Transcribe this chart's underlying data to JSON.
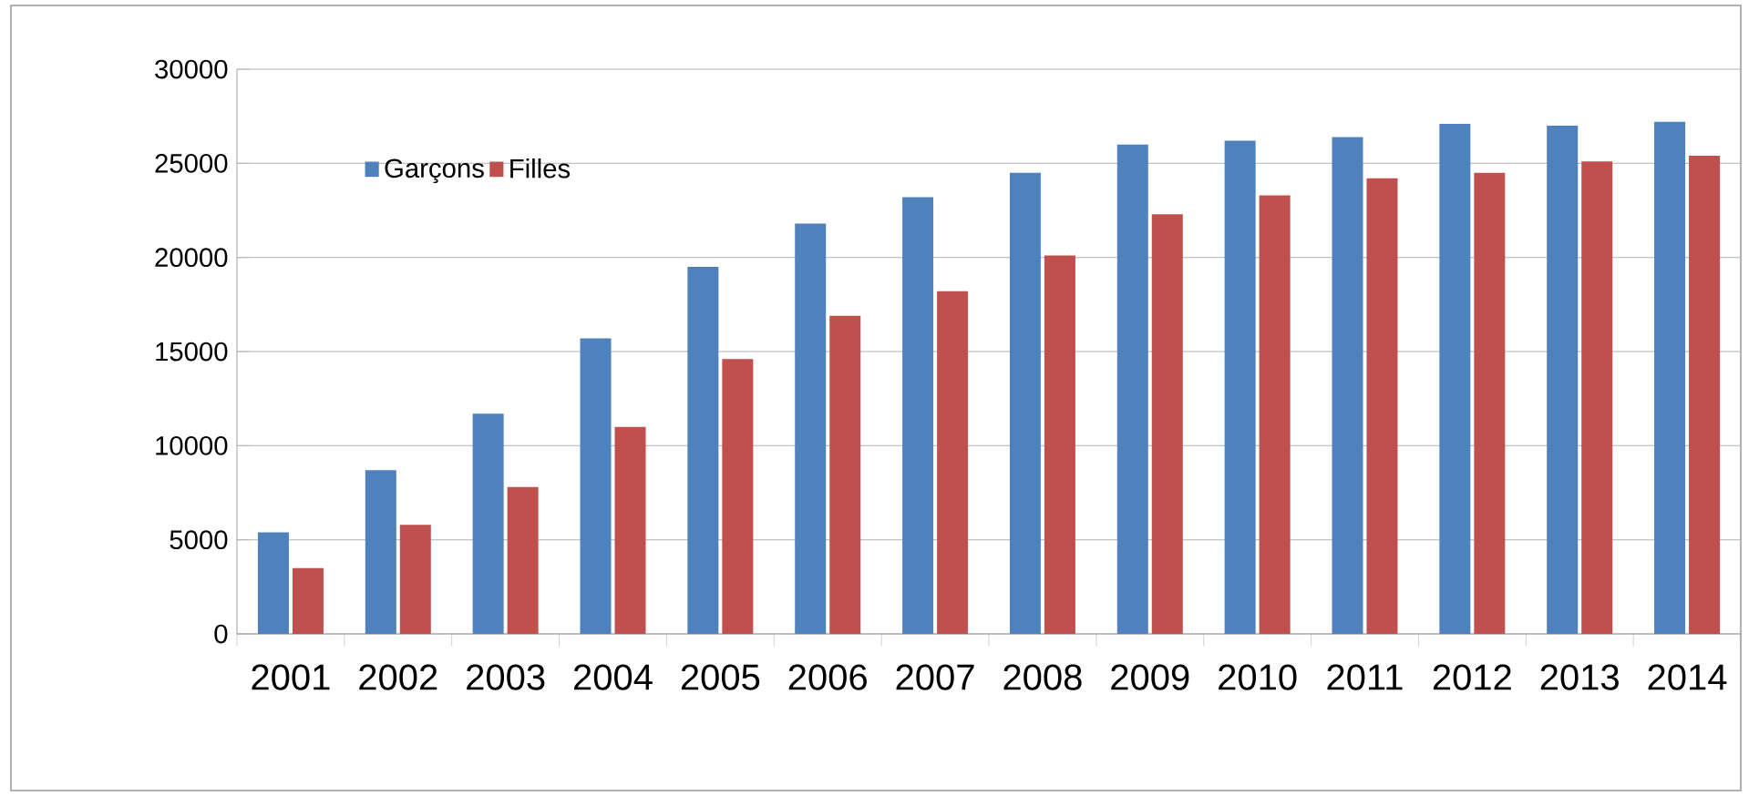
{
  "chart_data": {
    "type": "bar",
    "categories": [
      "2001",
      "2002",
      "2003",
      "2004",
      "2005",
      "2006",
      "2007",
      "2008",
      "2009",
      "2010",
      "2011",
      "2012",
      "2013",
      "2014"
    ],
    "series": [
      {
        "name": "Garçons",
        "color": "#4f81bd",
        "values": [
          5400,
          8700,
          11700,
          15700,
          19500,
          21800,
          23200,
          24500,
          26000,
          26200,
          26400,
          27100,
          27000,
          27200
        ]
      },
      {
        "name": "Filles",
        "color": "#c0504d",
        "values": [
          3500,
          5800,
          7800,
          11000,
          14600,
          16900,
          18200,
          20100,
          22300,
          23300,
          24200,
          24500,
          25100,
          25400
        ]
      }
    ],
    "ylim": [
      0,
      30000
    ],
    "yticks": [
      0,
      5000,
      10000,
      15000,
      20000,
      25000,
      30000
    ],
    "grid": "y",
    "legend": "top left"
  }
}
